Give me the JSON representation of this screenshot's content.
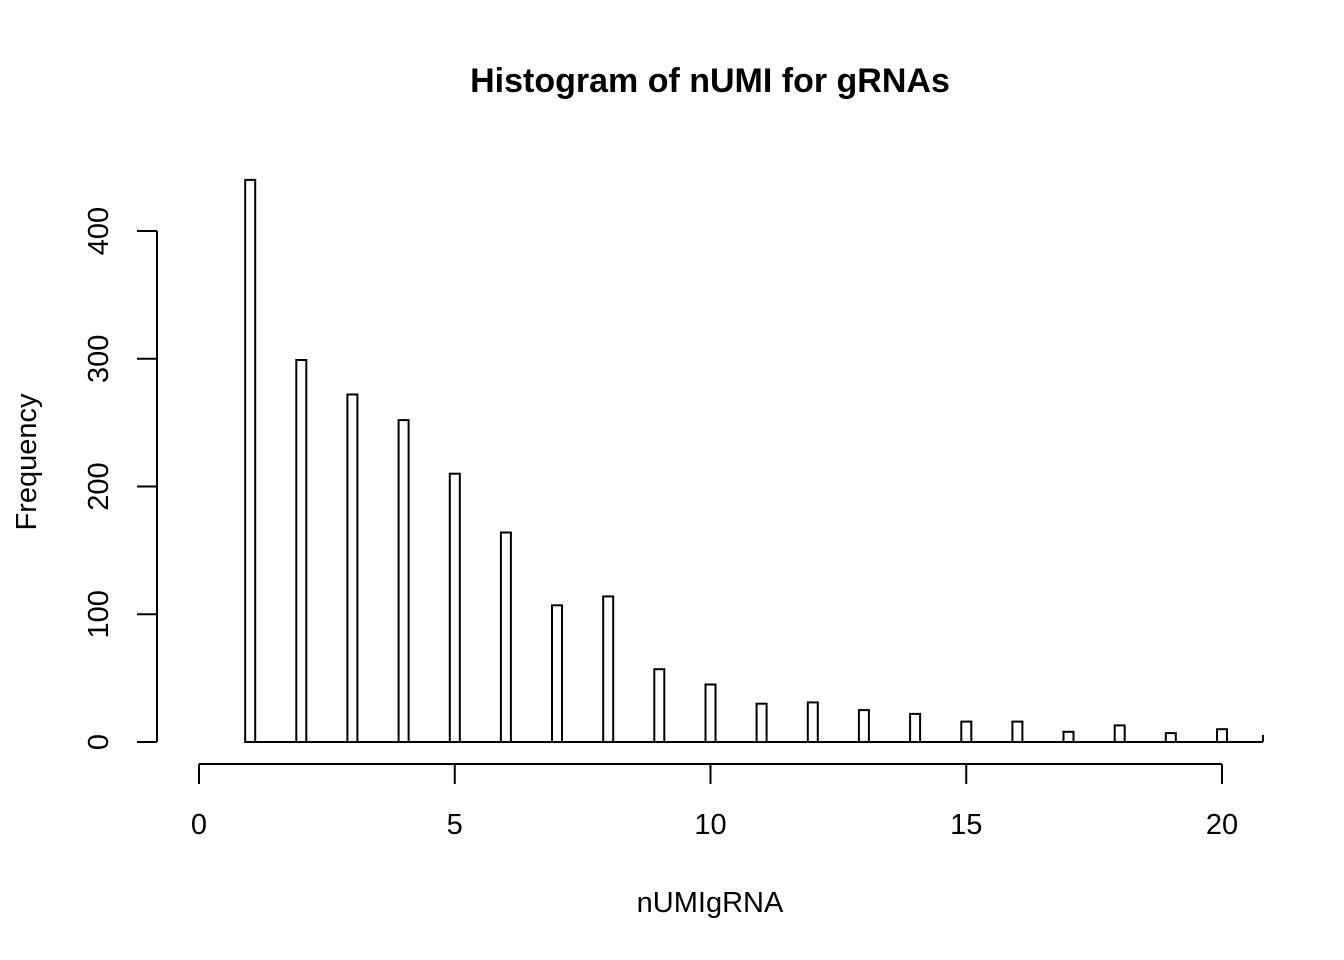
{
  "chart_data": {
    "type": "bar",
    "title": "Histogram of nUMI for gRNAs",
    "xlabel": "nUMIgRNA",
    "ylabel": "Frequency",
    "x_ticks": [
      0,
      5,
      10,
      15,
      20
    ],
    "y_ticks": [
      0,
      100,
      200,
      300,
      400
    ],
    "xlim": [
      0,
      20.8
    ],
    "ylim": [
      0,
      440
    ],
    "grid": false,
    "bar_fill": "#ffffff",
    "bar_stroke": "#000000",
    "bins": [
      {
        "x": 1,
        "value": 440
      },
      {
        "x": 2,
        "value": 299
      },
      {
        "x": 3,
        "value": 272
      },
      {
        "x": 4,
        "value": 252
      },
      {
        "x": 5,
        "value": 210
      },
      {
        "x": 6,
        "value": 164
      },
      {
        "x": 7,
        "value": 107
      },
      {
        "x": 8,
        "value": 114
      },
      {
        "x": 9,
        "value": 57
      },
      {
        "x": 10,
        "value": 45
      },
      {
        "x": 11,
        "value": 30
      },
      {
        "x": 12,
        "value": 31
      },
      {
        "x": 13,
        "value": 25
      },
      {
        "x": 14,
        "value": 22
      },
      {
        "x": 15,
        "value": 16
      },
      {
        "x": 16,
        "value": 16
      },
      {
        "x": 17,
        "value": 8
      },
      {
        "x": 18,
        "value": 13
      },
      {
        "x": 19,
        "value": 7
      },
      {
        "x": 20,
        "value": 10
      }
    ]
  }
}
